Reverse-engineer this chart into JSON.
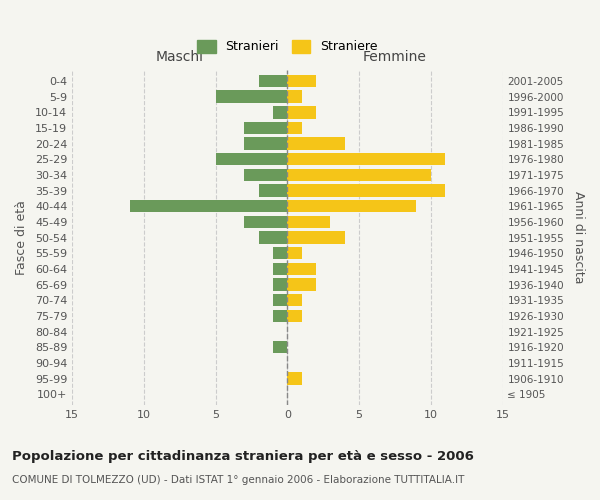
{
  "age_groups": [
    "100+",
    "95-99",
    "90-94",
    "85-89",
    "80-84",
    "75-79",
    "70-74",
    "65-69",
    "60-64",
    "55-59",
    "50-54",
    "45-49",
    "40-44",
    "35-39",
    "30-34",
    "25-29",
    "20-24",
    "15-19",
    "10-14",
    "5-9",
    "0-4"
  ],
  "birth_years": [
    "≤ 1905",
    "1906-1910",
    "1911-1915",
    "1916-1920",
    "1921-1925",
    "1926-1930",
    "1931-1935",
    "1936-1940",
    "1941-1945",
    "1946-1950",
    "1951-1955",
    "1956-1960",
    "1961-1965",
    "1966-1970",
    "1971-1975",
    "1976-1980",
    "1981-1985",
    "1986-1990",
    "1991-1995",
    "1996-2000",
    "2001-2005"
  ],
  "maschi": [
    0,
    0,
    0,
    1,
    0,
    1,
    1,
    1,
    1,
    1,
    2,
    3,
    11,
    2,
    3,
    5,
    3,
    3,
    1,
    5,
    2
  ],
  "femmine": [
    0,
    1,
    0,
    0,
    0,
    1,
    1,
    2,
    2,
    1,
    4,
    3,
    9,
    11,
    10,
    11,
    4,
    1,
    2,
    1,
    2
  ],
  "maschi_color": "#6a9a5a",
  "femmine_color": "#f5c518",
  "background_color": "#f5f5f0",
  "grid_color": "#cccccc",
  "title": "Popolazione per cittadinanza straniera per età e sesso - 2006",
  "subtitle": "COMUNE DI TOLMEZZO (UD) - Dati ISTAT 1° gennaio 2006 - Elaborazione TUTTITALIA.IT",
  "xlabel_left": "Maschi",
  "xlabel_right": "Femmine",
  "ylabel_left": "Fasce di età",
  "ylabel_right": "Anni di nascita",
  "legend_stranieri": "Stranieri",
  "legend_straniere": "Straniere",
  "xlim": 15,
  "bar_height": 0.8
}
